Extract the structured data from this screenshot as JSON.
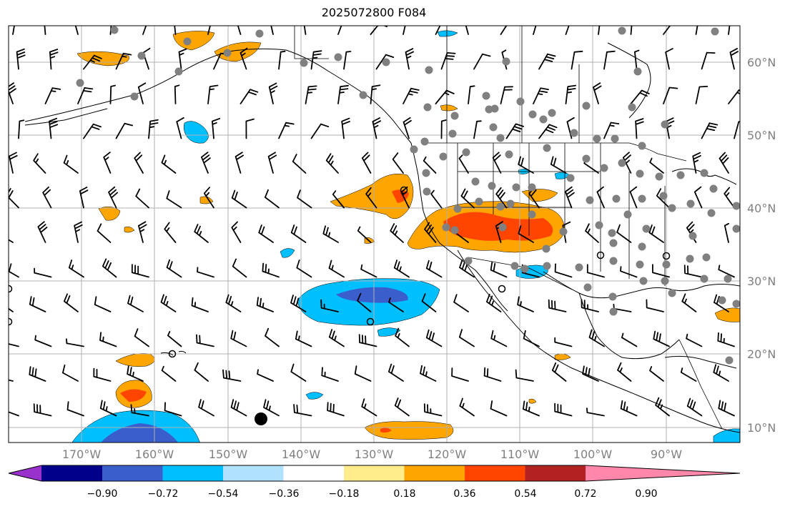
{
  "title": "2025072800 F084",
  "lat_labels": [
    "60°N",
    "50°N",
    "40°N",
    "30°N",
    "20°N",
    "10°N"
  ],
  "lon_labels": [
    "170°W",
    "160°W",
    "150°W",
    "140°W",
    "130°W",
    "120°W",
    "110°W",
    "100°W",
    "90°W"
  ],
  "colorbar": {
    "ticks": [
      "−0.90",
      "−0.72",
      "−0.54",
      "−0.36",
      "−0.18",
      "0.18",
      "0.36",
      "0.54",
      "0.72",
      "0.90"
    ],
    "colors": [
      "#9932cc",
      "#00008b",
      "#3a5fcd",
      "#00bfff",
      "#b0e2ff",
      "#ffffff",
      "#ffec8b",
      "#ffa500",
      "#ff4500",
      "#b22222",
      "#ff88aa"
    ]
  },
  "map": {
    "extent_lon": [
      -178,
      -78
    ],
    "extent_lat": [
      8,
      65
    ]
  }
}
